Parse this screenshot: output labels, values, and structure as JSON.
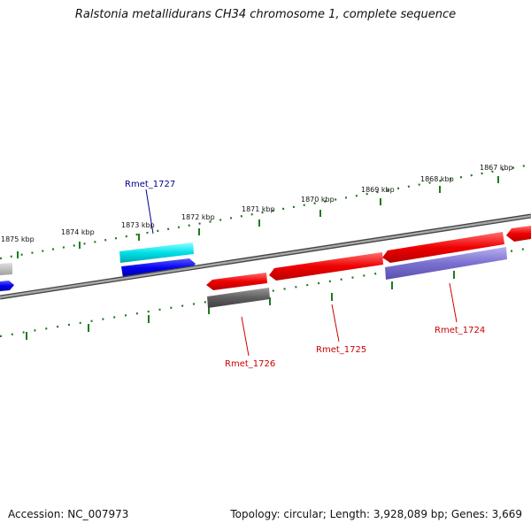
{
  "title": "Ralstonia metallidurans CH34 chromosome 1, complete sequence",
  "footer": {
    "accession": "Accession: NC_007973",
    "topology": "Topology: circular; Length: 3,928,089 bp; Genes: 3,669"
  },
  "kbp_labels": [
    "1875 kbp",
    "1874 kbp",
    "1873 kbp",
    "1872 kbp",
    "1871 kbp",
    "1870 kbp",
    "1869 kbp",
    "1868 kbp",
    "1867 kbp"
  ],
  "genes": [
    {
      "label": "Rmet_1727",
      "color": "#00008b"
    },
    {
      "label": "Rmet_1726",
      "color": "#cc0000"
    },
    {
      "label": "Rmet_1725",
      "color": "#cc0000"
    },
    {
      "label": "Rmet_1724",
      "color": "#cc0000"
    }
  ],
  "colors": {
    "backbone": "#808080",
    "tick": "#1f7a1f",
    "forward_cds": "#0000ee",
    "reverse_cds": "#ee0000",
    "cyan_track": "#00d8e0",
    "gray_track": "#5a5a5a",
    "lavender_track": "#7a70d0"
  }
}
